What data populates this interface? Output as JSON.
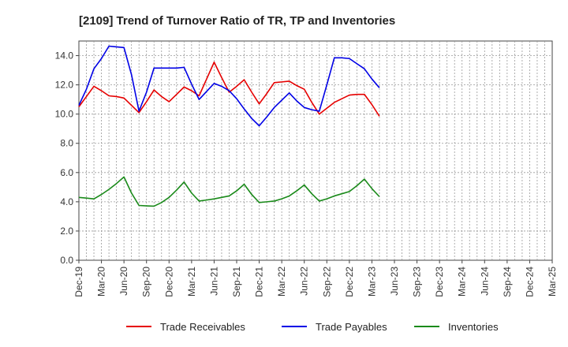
{
  "chart_data": {
    "type": "line",
    "title": "[2109]  Trend of Turnover Ratio of TR, TP and Inventories",
    "xlabel": "",
    "ylabel": "",
    "ylim": [
      0,
      15
    ],
    "yticks": [
      "0.0",
      "2.0",
      "4.0",
      "6.0",
      "8.0",
      "10.0",
      "12.0",
      "14.0"
    ],
    "ytick_values": [
      0,
      2,
      4,
      6,
      8,
      10,
      12,
      14
    ],
    "x_tick_labels": [
      "Dec-19",
      "Mar-20",
      "Jun-20",
      "Sep-20",
      "Dec-20",
      "Mar-21",
      "Jun-21",
      "Sep-21",
      "Dec-21",
      "Mar-22",
      "Jun-22",
      "Sep-22",
      "Dec-22",
      "Mar-23",
      "Jun-23",
      "Sep-23",
      "Dec-23",
      "Mar-24",
      "Jun-24",
      "Sep-24",
      "Dec-24",
      "Mar-25"
    ],
    "grid": true,
    "legend_position": "bottom",
    "series": [
      {
        "name": "Trade Receivables",
        "color": "#e60000",
        "values": [
          10.5,
          11.2,
          11.9,
          11.6,
          11.25,
          11.2,
          11.1,
          10.6,
          10.1,
          10.85,
          11.65,
          11.2,
          10.85,
          11.35,
          11.85,
          11.6,
          11.25,
          12.4,
          13.55,
          12.5,
          11.5,
          11.9,
          12.35,
          11.5,
          10.7,
          11.4,
          12.15,
          12.2,
          12.25,
          11.95,
          11.7,
          10.8,
          10.0,
          10.4,
          10.8,
          11.05,
          11.3,
          11.35,
          11.35,
          10.65,
          9.85
        ]
      },
      {
        "name": "Trade Payables",
        "color": "#0000e6",
        "values": [
          10.6,
          11.7,
          13.1,
          13.8,
          14.65,
          14.6,
          14.55,
          12.7,
          10.2,
          11.5,
          13.15,
          13.15,
          13.15,
          13.15,
          13.2,
          12.05,
          11.0,
          11.55,
          12.1,
          11.9,
          11.6,
          11.05,
          10.35,
          9.7,
          9.2,
          9.8,
          10.45,
          10.95,
          11.45,
          10.9,
          10.45,
          10.3,
          10.2,
          12.0,
          13.85,
          13.85,
          13.8,
          13.45,
          13.1,
          12.4,
          11.8
        ]
      },
      {
        "name": "Inventories",
        "color": "#1a8a1a",
        "values": [
          4.3,
          4.25,
          4.2,
          4.5,
          4.85,
          5.25,
          5.7,
          4.6,
          3.75,
          3.72,
          3.7,
          3.95,
          4.3,
          4.8,
          5.35,
          4.6,
          4.05,
          4.12,
          4.2,
          4.3,
          4.4,
          4.75,
          5.2,
          4.5,
          3.95,
          4.0,
          4.05,
          4.2,
          4.4,
          4.75,
          5.15,
          4.55,
          4.05,
          4.2,
          4.4,
          4.55,
          4.7,
          5.1,
          5.55,
          4.9,
          4.35
        ]
      }
    ]
  }
}
